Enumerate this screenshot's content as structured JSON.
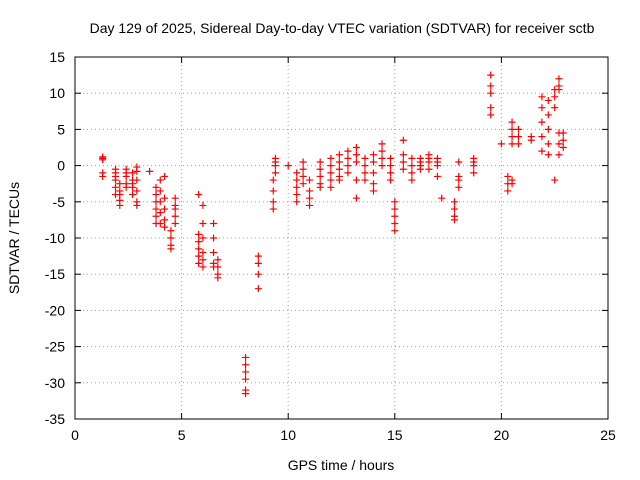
{
  "chart_data": {
    "type": "scatter",
    "title": "Day 129 of 2025, Sidereal Day-to-day VTEC variation (SDTVAR) for receiver sctb",
    "xlabel": "GPS time / hours",
    "ylabel": "SDTVAR / TECUs",
    "xlim": [
      0,
      25
    ],
    "ylim": [
      -35,
      15
    ],
    "xticks": [
      0,
      5,
      10,
      15,
      20,
      25
    ],
    "yticks": [
      -35,
      -30,
      -25,
      -20,
      -15,
      -10,
      -5,
      0,
      5,
      10,
      15
    ],
    "grid": true,
    "marker": "+",
    "color": "#ff0000",
    "clusters": [
      {
        "x": 1.3,
        "y": [
          1.2,
          0.8,
          1.0,
          -1.0,
          -1.5
        ]
      },
      {
        "x": 1.9,
        "y": [
          -0.5,
          -1.0,
          -2.0,
          -3.0,
          -4.0,
          -1.5
        ]
      },
      {
        "x": 2.1,
        "y": [
          -2.5,
          -4.0,
          -5.5,
          -3.5,
          -4.8
        ]
      },
      {
        "x": 2.4,
        "y": [
          -0.5,
          -1.5,
          -2.5,
          -1.0,
          -3.0
        ]
      },
      {
        "x": 2.7,
        "y": [
          -1.0,
          -2.0,
          -3.0,
          -2.5,
          -4.0
        ]
      },
      {
        "x": 2.9,
        "y": [
          -0.8,
          -2.0,
          -3.5,
          -5.0,
          -5.5,
          -0.2
        ]
      },
      {
        "x": 3.5,
        "y": [
          -0.8
        ]
      },
      {
        "x": 3.8,
        "y": [
          -3.0,
          -4.0,
          -5.0,
          -6.0,
          -7.0,
          -8.0
        ]
      },
      {
        "x": 4.0,
        "y": [
          -2.0,
          -3.5,
          -5.0,
          -6.5,
          -8.0
        ]
      },
      {
        "x": 4.2,
        "y": [
          -4.5,
          -6.0,
          -7.5,
          -8.5,
          -1.5
        ]
      },
      {
        "x": 4.5,
        "y": [
          -10.0,
          -11.0,
          -11.5,
          -9.0
        ]
      },
      {
        "x": 4.7,
        "y": [
          -4.5,
          -6.0,
          -7.0,
          -8.0,
          -5.5
        ]
      },
      {
        "x": 5.8,
        "y": [
          -9.5,
          -10.5,
          -11.5,
          -12.5,
          -13.5,
          -4.0
        ]
      },
      {
        "x": 6.0,
        "y": [
          -5.5,
          -8.0,
          -10.0,
          -12.0,
          -13.0,
          -14.0
        ]
      },
      {
        "x": 6.5,
        "y": [
          -8.0,
          -10.0,
          -12.0,
          -13.5,
          -14.0
        ]
      },
      {
        "x": 6.7,
        "y": [
          -13.0,
          -14.0,
          -15.0,
          -15.5
        ]
      },
      {
        "x": 8.0,
        "y": [
          -26.5,
          -27.5,
          -28.5,
          -29.5,
          -31.0,
          -31.5
        ]
      },
      {
        "x": 8.6,
        "y": [
          -12.5,
          -13.5,
          -15.0,
          -17.0
        ]
      },
      {
        "x": 9.3,
        "y": [
          -2.0,
          -3.5,
          -5.0,
          -6.0
        ]
      },
      {
        "x": 9.4,
        "y": [
          1.0,
          0.5,
          0.0,
          -1.0
        ]
      },
      {
        "x": 10.0,
        "y": [
          0.0
        ]
      },
      {
        "x": 10.4,
        "y": [
          -1.0,
          -2.0,
          -3.0,
          -4.0,
          -5.0
        ]
      },
      {
        "x": 10.7,
        "y": [
          0.5,
          -0.5,
          -1.5,
          -2.5
        ]
      },
      {
        "x": 11.0,
        "y": [
          -2.0,
          -3.5,
          -4.5,
          -5.5
        ]
      },
      {
        "x": 11.5,
        "y": [
          0.5,
          -0.5,
          -1.5,
          -2.5,
          -3.0
        ]
      },
      {
        "x": 12.0,
        "y": [
          1.0,
          0.0,
          -1.0,
          -2.0,
          -3.0
        ]
      },
      {
        "x": 12.4,
        "y": [
          1.5,
          0.5,
          -0.5,
          -1.5,
          -2.0
        ]
      },
      {
        "x": 12.8,
        "y": [
          2.0,
          1.0,
          0.0,
          -1.0
        ]
      },
      {
        "x": 13.2,
        "y": [
          2.5,
          1.5,
          0.5,
          -2.0,
          -4.5
        ]
      },
      {
        "x": 13.6,
        "y": [
          1.0,
          0.0,
          -1.0,
          -2.0
        ]
      },
      {
        "x": 14.0,
        "y": [
          1.5,
          0.5,
          -1.0,
          -2.5,
          -3.5
        ]
      },
      {
        "x": 14.4,
        "y": [
          3.0,
          2.0,
          1.0,
          0.0
        ]
      },
      {
        "x": 14.8,
        "y": [
          1.0,
          0.0,
          -1.0,
          -2.0
        ]
      },
      {
        "x": 15.0,
        "y": [
          -5.0,
          -6.0,
          -7.0,
          -8.0,
          -9.0
        ]
      },
      {
        "x": 15.4,
        "y": [
          1.5,
          0.5,
          -0.5,
          3.5
        ]
      },
      {
        "x": 15.8,
        "y": [
          1.0,
          0.0,
          -1.0,
          -2.0
        ]
      },
      {
        "x": 16.2,
        "y": [
          0.5,
          0.0,
          -0.5,
          1.0
        ]
      },
      {
        "x": 16.6,
        "y": [
          1.5,
          1.0,
          0.5,
          -0.5
        ]
      },
      {
        "x": 17.0,
        "y": [
          1.0,
          0.5,
          0.0,
          -1.5
        ]
      },
      {
        "x": 17.2,
        "y": [
          -4.5
        ]
      },
      {
        "x": 17.8,
        "y": [
          -5.0,
          -6.0,
          -7.0,
          -7.5
        ]
      },
      {
        "x": 18.0,
        "y": [
          -1.5,
          -2.0,
          -3.0,
          0.5
        ]
      },
      {
        "x": 18.7,
        "y": [
          1.0,
          0.5,
          0.0,
          -1.0
        ]
      },
      {
        "x": 19.5,
        "y": [
          12.5,
          11.0,
          10.0,
          8.0,
          7.0
        ]
      },
      {
        "x": 20.0,
        "y": [
          3.0
        ]
      },
      {
        "x": 20.3,
        "y": [
          -1.5,
          -2.5,
          -3.5
        ]
      },
      {
        "x": 20.5,
        "y": [
          6.0,
          5.0,
          4.0,
          3.0,
          -2.0,
          -2.5
        ]
      },
      {
        "x": 20.8,
        "y": [
          5.0,
          4.0,
          3.0
        ]
      },
      {
        "x": 21.4,
        "y": [
          4.0,
          3.5
        ]
      },
      {
        "x": 21.9,
        "y": [
          9.5,
          8.0,
          6.0,
          4.0,
          2.0
        ]
      },
      {
        "x": 22.2,
        "y": [
          9.0,
          7.0,
          5.0,
          3.0,
          1.5
        ]
      },
      {
        "x": 22.5,
        "y": [
          10.5,
          9.5,
          8.0,
          -2.0
        ]
      },
      {
        "x": 22.7,
        "y": [
          12.0,
          11.0,
          10.5,
          4.5,
          3.0,
          1.5
        ]
      },
      {
        "x": 22.9,
        "y": [
          4.5,
          3.5,
          2.5
        ]
      }
    ]
  }
}
